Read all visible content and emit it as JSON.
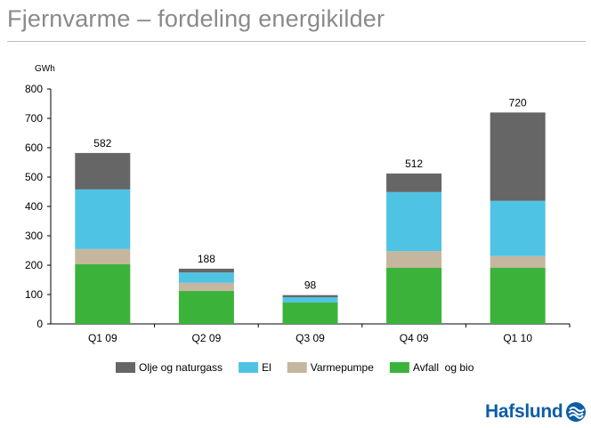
{
  "slide": {
    "title": "Fjernvarme – fordeling energikilder"
  },
  "brand": {
    "logo_text": "Hafslund",
    "color": "#0d5da6"
  },
  "chart_data": {
    "type": "bar",
    "stacked": true,
    "unit_label": "GWh",
    "categories": [
      "Q1 09",
      "Q2 09",
      "Q3 09",
      "Q4 09",
      "Q1 10"
    ],
    "series": [
      {
        "name": "Avfall  og bio",
        "color": "#3bb33b",
        "values": [
          203,
          112,
          73,
          191,
          191
        ]
      },
      {
        "name": "Varmepumpe",
        "color": "#c4b69f",
        "values": [
          52,
          28,
          0,
          57,
          40
        ]
      },
      {
        "name": "El",
        "color": "#4fc3e3",
        "values": [
          203,
          35,
          18,
          201,
          188
        ]
      },
      {
        "name": "Olje og naturgass",
        "color": "#666666",
        "values": [
          124,
          13,
          7,
          63,
          301
        ]
      }
    ],
    "totals": [
      "582",
      "188",
      "98",
      "512",
      "720"
    ],
    "ylim": [
      0,
      800
    ],
    "yticks": [
      "0",
      "100",
      "200",
      "300",
      "400",
      "500",
      "600",
      "700",
      "800"
    ],
    "ytick_values": [
      0,
      100,
      200,
      300,
      400,
      500,
      600,
      700,
      800
    ],
    "legend_order": [
      "Olje og naturgass",
      "El",
      "Varmepumpe",
      "Avfall  og bio"
    ],
    "legend_position": "bottom",
    "grid": false
  }
}
